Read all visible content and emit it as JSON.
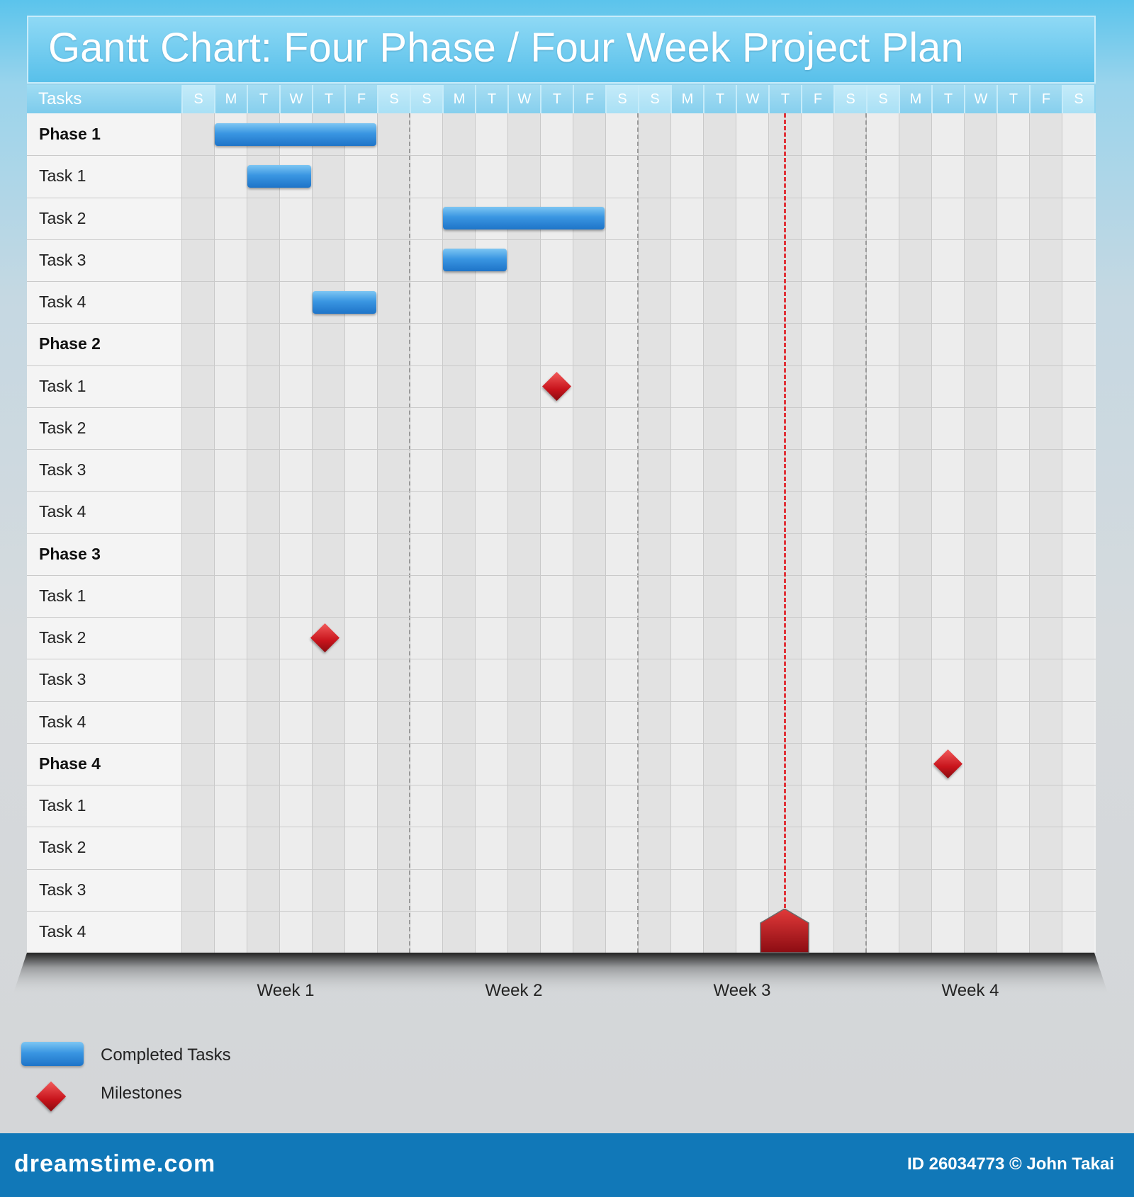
{
  "title": "Gantt Chart: Four Phase / Four Week Project Plan",
  "tasks_header": "Tasks",
  "colors": {
    "completed": "#2f86d6",
    "milestone": "#c8141c",
    "today_line": "#e0343a",
    "footer": "#1178b8"
  },
  "chart_data": {
    "type": "gantt",
    "days": [
      "S",
      "M",
      "T",
      "W",
      "T",
      "F",
      "S",
      "S",
      "M",
      "T",
      "W",
      "T",
      "F",
      "S",
      "S",
      "M",
      "T",
      "W",
      "T",
      "F",
      "S",
      "S",
      "M",
      "T",
      "W",
      "T",
      "F",
      "S"
    ],
    "weeks": [
      "Week 1",
      "Week 2",
      "Week 3",
      "Week 4"
    ],
    "rows": [
      {
        "label": "Phase 1",
        "phase": true
      },
      {
        "label": "Task 1",
        "phase": false
      },
      {
        "label": "Task 2",
        "phase": false
      },
      {
        "label": "Task 3",
        "phase": false
      },
      {
        "label": "Task 4",
        "phase": false
      },
      {
        "label": "Phase 2",
        "phase": true
      },
      {
        "label": "Task 1",
        "phase": false
      },
      {
        "label": "Task 2",
        "phase": false
      },
      {
        "label": "Task 3",
        "phase": false
      },
      {
        "label": "Task 4",
        "phase": false
      },
      {
        "label": "Phase 3",
        "phase": true
      },
      {
        "label": "Task 1",
        "phase": false
      },
      {
        "label": "Task 2",
        "phase": false
      },
      {
        "label": "Task 3",
        "phase": false
      },
      {
        "label": "Task 4",
        "phase": false
      },
      {
        "label": "Phase 4",
        "phase": true
      },
      {
        "label": "Task 1",
        "phase": false
      },
      {
        "label": "Task 2",
        "phase": false
      },
      {
        "label": "Task 3",
        "phase": false
      },
      {
        "label": "Task 4",
        "phase": false
      }
    ],
    "completed_tasks": [
      {
        "row": 0,
        "start_day": 1,
        "end_day": 6
      },
      {
        "row": 1,
        "start_day": 2,
        "end_day": 4
      },
      {
        "row": 2,
        "start_day": 8,
        "end_day": 13
      },
      {
        "row": 3,
        "start_day": 8,
        "end_day": 10
      },
      {
        "row": 4,
        "start_day": 4,
        "end_day": 6
      }
    ],
    "milestones": [
      {
        "row": 6,
        "day": 11.5
      },
      {
        "row": 12,
        "day": 4.4
      },
      {
        "row": 15,
        "day": 23.5
      }
    ],
    "current_day": 18,
    "legend": [
      {
        "label": "Completed Tasks",
        "marker": "bar"
      },
      {
        "label": "Milestones",
        "marker": "diamond"
      }
    ]
  },
  "footer": {
    "site": "dreamstime.com",
    "id_text": "ID 26034773 © John Takai"
  }
}
